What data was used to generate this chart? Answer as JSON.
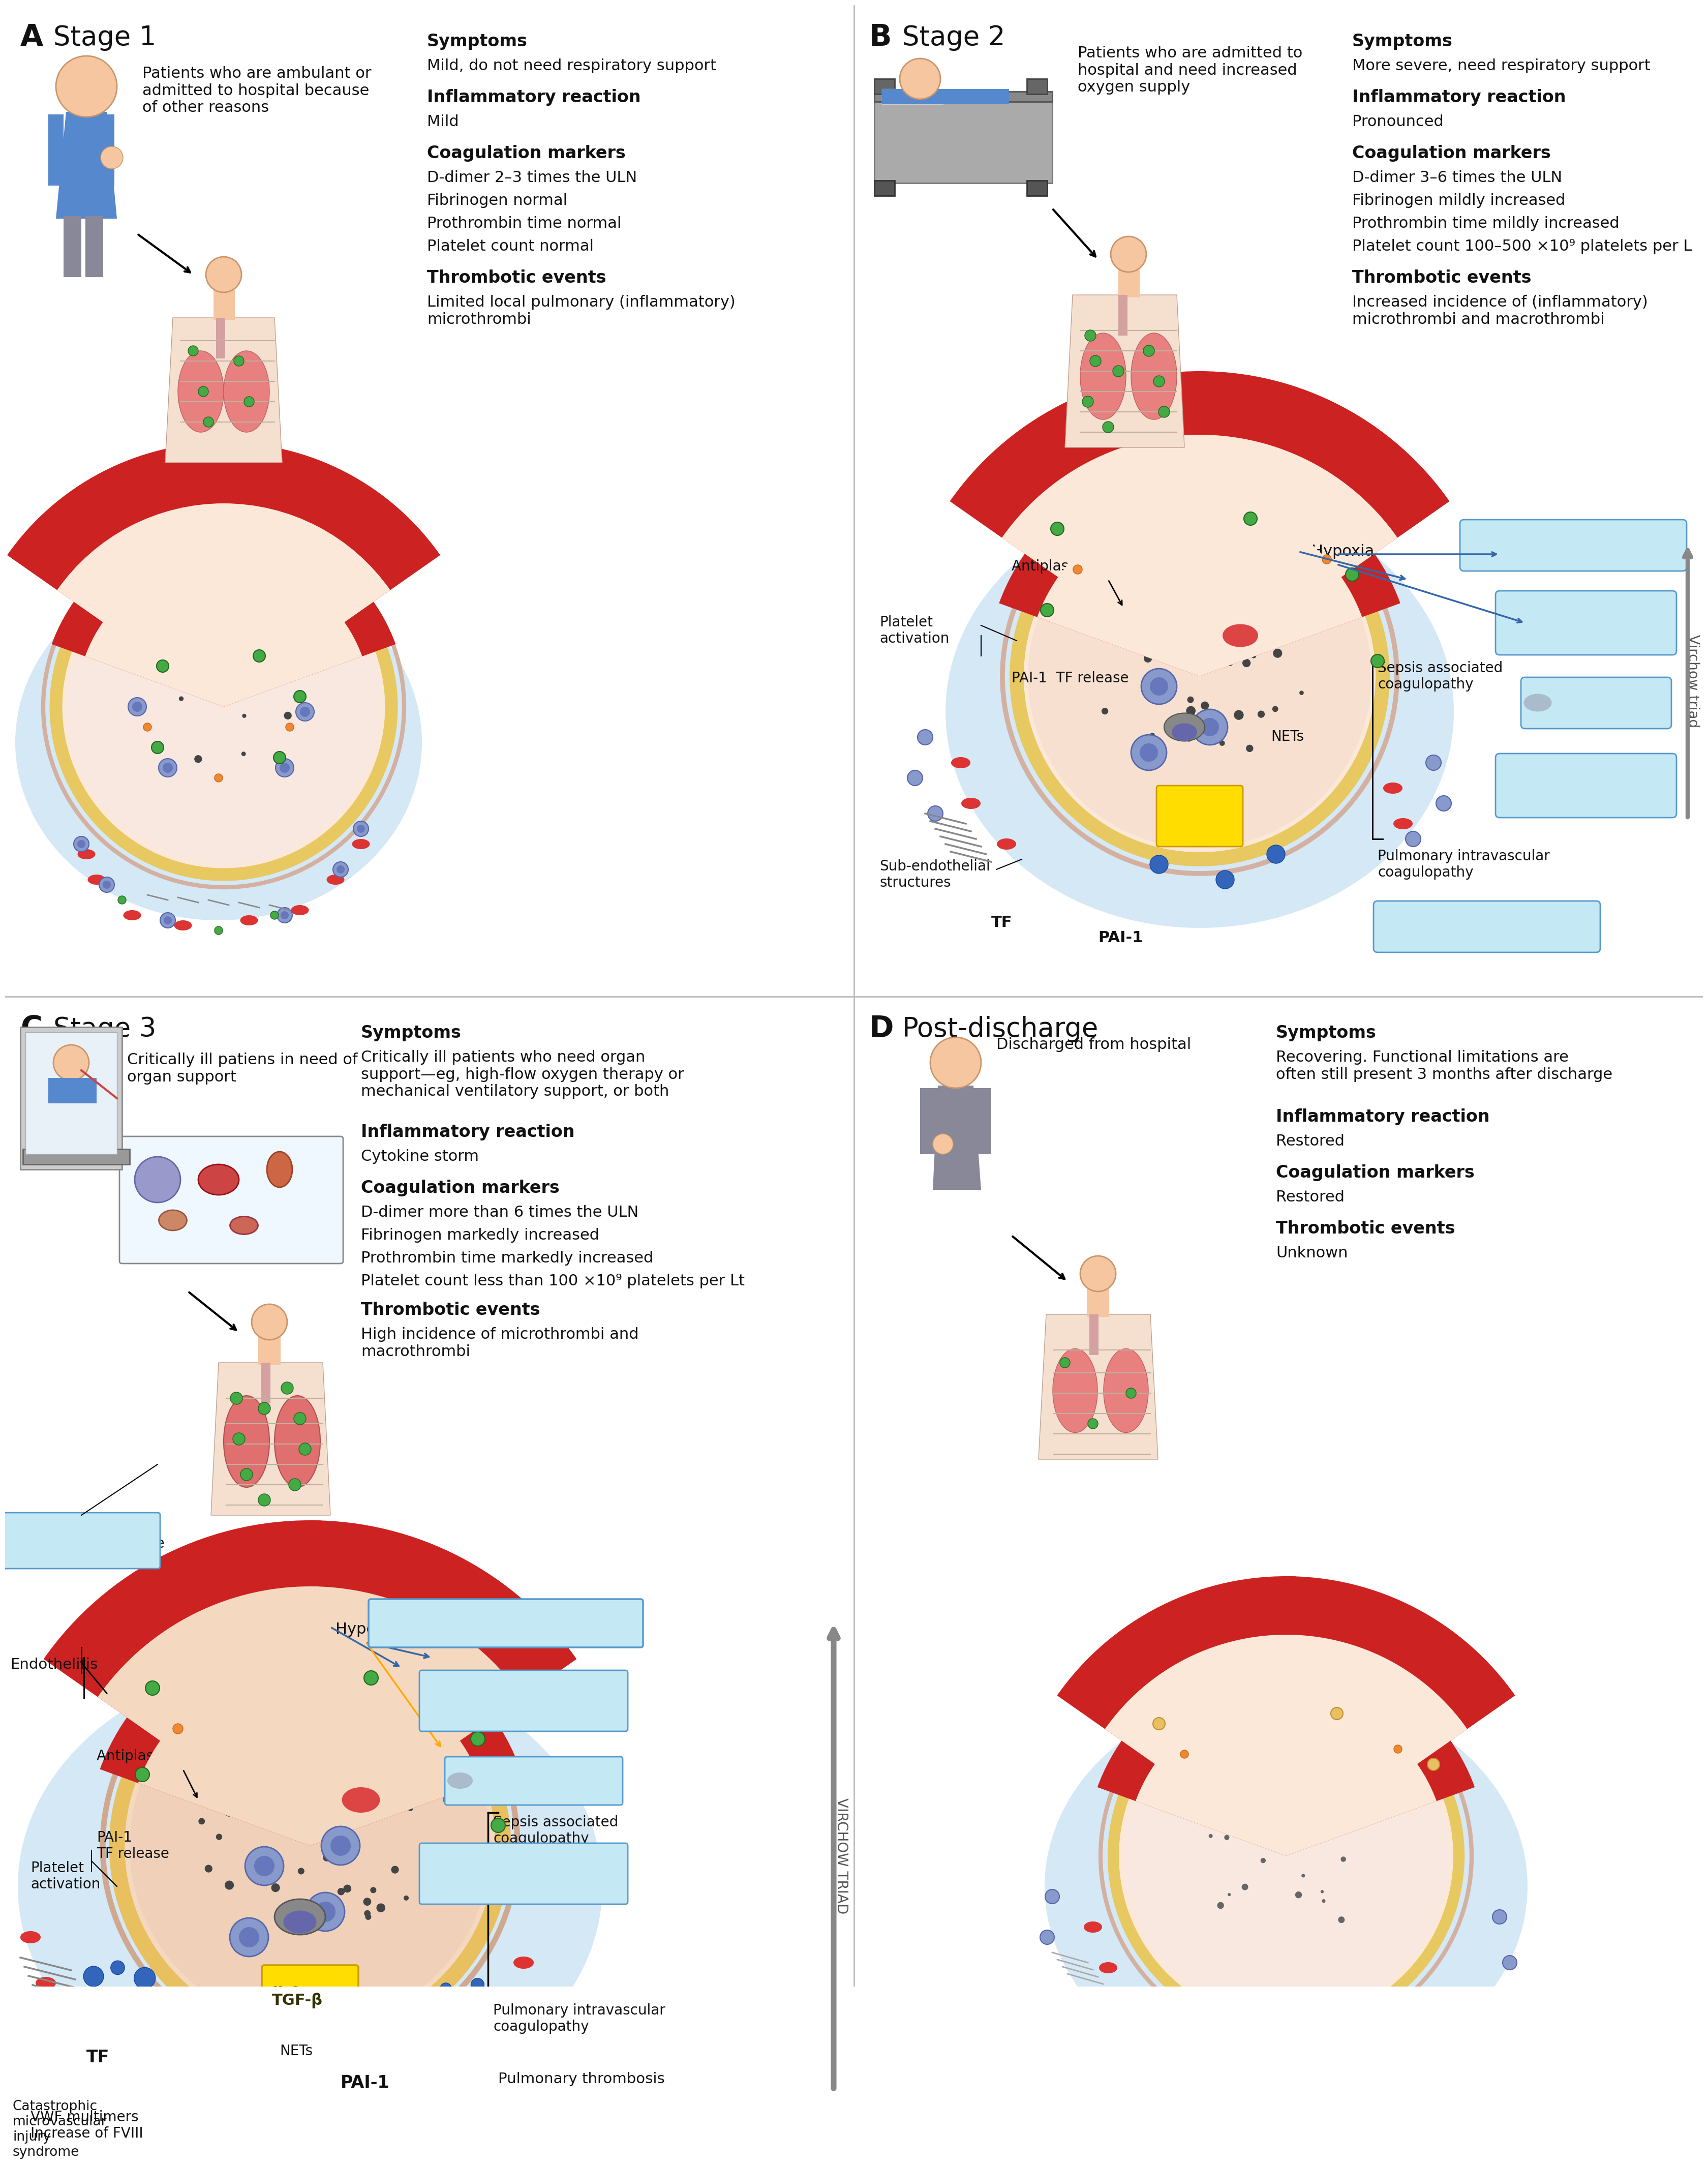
{
  "bg_color": "#ffffff",
  "light_blue_bg": "#d8eaf7",
  "box_blue": "#b8d8f0",
  "box_blue_edge": "#5599cc",
  "box_yellow": "#ffdd00",
  "box_cyan_top": "#c5e8f5",
  "panel_A": {
    "label": "A",
    "title": "Stage 1",
    "patient_desc": "Patients who are ambulant or\nadmitted to hospital because\nof other reasons",
    "sym_title": "Symptoms",
    "sym_text": "Mild, do not need respiratory support",
    "inf_title": "Inflammatory reaction",
    "inf_text": "Mild",
    "coa_title": "Coagulation markers",
    "coa_text": "D-dimer 2–3 times the ULN\nFibrinogen normal\nProthrombin time normal\nPlatelet count normal",
    "thr_title": "Thrombotic events",
    "thr_text": "Limited local pulmonary (inflammatory)\nmicrothrombi"
  },
  "panel_B": {
    "label": "B",
    "title": "Stage 2",
    "patient_desc": "Patients who are admitted to\nhospital and need increased\noxygen supply",
    "sym_title": "Symptoms",
    "sym_text": "More severe, need respiratory support",
    "inf_title": "Inflammatory reaction",
    "inf_text": "Pronounced",
    "coa_title": "Coagulation markers",
    "coa_text": "D-dimer 3–6 times the ULN\nFibrinogen mildly increased\nProthrombin time mildly increased\nPlatelet count 100–500 ×10⁹ platelets per L",
    "thr_title": "Thrombotic events",
    "thr_text": "Increased incidence of (inflammatory)\nmicrothrombi and macrothrombi"
  },
  "panel_C": {
    "label": "C",
    "title": "Stage 3",
    "patient_desc": "Critically ill patiens in need of\norgan support",
    "sym_title": "Symptoms",
    "sym_text": "Critically ill patients who need organ\nsupport—eg, high-flow oxygen therapy or\nmechanical ventilatory support, or both",
    "inf_title": "Inflammatory reaction",
    "inf_text": "Cytokine storm",
    "coa_title": "Coagulation markers",
    "coa_text": "D-dimer more than 6 times the ULN\nFibrinogen markedly increased\nProthrombin time markedly increased\nPlatelet count less than 100 ×10⁹ platelets per Lt",
    "thr_title": "Thrombotic events",
    "thr_text": "High incidence of microthrombi and\nmacrothrombi"
  },
  "panel_D": {
    "label": "D",
    "title": "Post-discharge",
    "patient_desc": "Discharged from hospital",
    "sym_title": "Symptoms",
    "sym_text": "Recovering. Functional limitations are\noften still present 3 months after discharge",
    "inf_title": "Inflammatory reaction",
    "inf_text": "Restored",
    "coa_title": "Coagulation markers",
    "coa_text": "Restored",
    "thr_title": "Thrombotic events",
    "thr_text": "Unknown"
  }
}
